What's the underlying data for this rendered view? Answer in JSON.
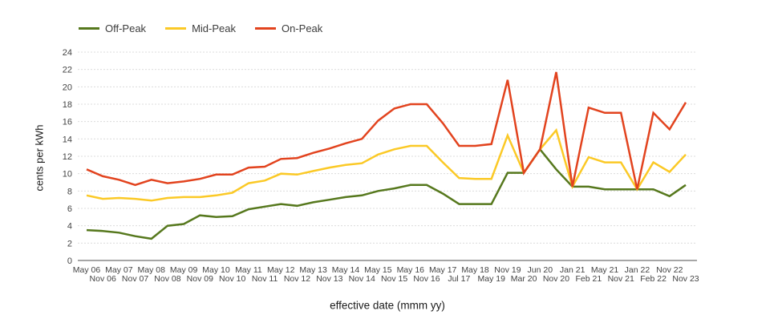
{
  "chart_data": {
    "type": "line",
    "title": "",
    "xlabel": "effective date (mmm yy)",
    "ylabel": "cents per kWh",
    "ylim": [
      0,
      24
    ],
    "ytick_step": 2,
    "grid": "horizontal-only",
    "legend_position": "top-left",
    "categories": [
      "May 06",
      "Nov 06",
      "May 07",
      "Nov 07",
      "May 08",
      "Nov 08",
      "May 09",
      "Nov 09",
      "May 10",
      "Nov 10",
      "May 11",
      "Nov 11",
      "May 12",
      "Nov 12",
      "May 13",
      "Nov 13",
      "May 14",
      "Nov 14",
      "May 15",
      "Nov 15",
      "May 16",
      "Nov 16",
      "May 17",
      "Jul 17",
      "May 18",
      "May 19",
      "Nov 19",
      "Mar 20",
      "Jun 20",
      "Nov 20",
      "Jan 21",
      "Feb 21",
      "May 21",
      "Nov 21",
      "Jan 22",
      "Feb 22",
      "Nov 22",
      "Nov 23"
    ],
    "series": [
      {
        "name": "Off-Peak",
        "color": "#56781D",
        "values": [
          3.5,
          3.4,
          3.2,
          2.8,
          2.5,
          4.0,
          4.2,
          5.2,
          5.0,
          5.1,
          5.9,
          6.2,
          6.5,
          6.3,
          6.7,
          7.0,
          7.3,
          7.5,
          8.0,
          8.3,
          8.7,
          8.7,
          7.7,
          6.5,
          6.5,
          6.5,
          10.1,
          10.1,
          12.8,
          10.5,
          8.5,
          8.5,
          8.2,
          8.2,
          8.2,
          8.2,
          7.4,
          8.7
        ]
      },
      {
        "name": "Mid-Peak",
        "color": "#FBC926",
        "values": [
          7.5,
          7.1,
          7.2,
          7.1,
          6.9,
          7.2,
          7.3,
          7.3,
          7.5,
          7.8,
          8.9,
          9.2,
          10.0,
          9.9,
          10.3,
          10.7,
          11.0,
          11.2,
          12.2,
          12.8,
          13.2,
          13.2,
          11.3,
          9.5,
          9.4,
          9.4,
          14.4,
          10.1,
          12.8,
          15.0,
          8.5,
          11.9,
          11.3,
          11.3,
          8.2,
          11.3,
          10.2,
          12.2
        ]
      },
      {
        "name": "On-Peak",
        "color": "#E2431E",
        "values": [
          10.5,
          9.7,
          9.3,
          8.7,
          9.3,
          8.9,
          9.1,
          9.4,
          9.9,
          9.9,
          10.7,
          10.8,
          11.7,
          11.8,
          12.4,
          12.9,
          13.5,
          14.0,
          16.1,
          17.5,
          18.0,
          18.0,
          15.8,
          13.2,
          13.2,
          13.4,
          20.8,
          10.1,
          12.8,
          21.7,
          8.5,
          17.6,
          17.0,
          17.0,
          8.2,
          17.0,
          15.1,
          18.2
        ]
      }
    ],
    "yticks": [
      0,
      2,
      4,
      6,
      8,
      10,
      12,
      14,
      16,
      18,
      20,
      22,
      24
    ]
  },
  "layout_colors": {
    "gridline": "#dcdcdc",
    "baseline": "#4d4d4d",
    "tick_text": "#444444",
    "axis_title_text": "#1a1a1a",
    "background": "#ffffff"
  }
}
